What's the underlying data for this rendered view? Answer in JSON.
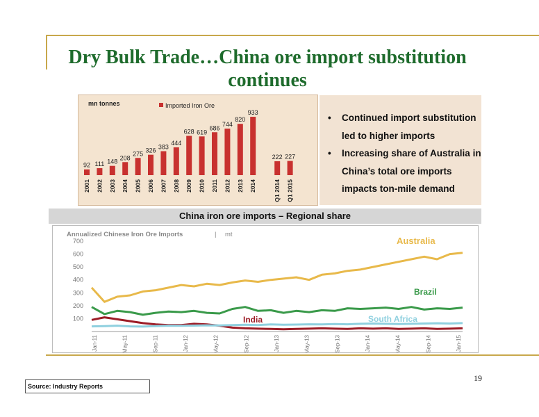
{
  "slide": {
    "title": "Dry Bulk Trade…China ore import substitution continues",
    "bullets": [
      "Continued import substitution led to higher imports",
      "Increasing share of Australia in China’s total ore imports impacts ton-mile demand"
    ],
    "subtitle": "China iron ore imports – Regional share",
    "page_number": "19",
    "source": "Source: Industry Reports"
  },
  "colors": {
    "title_green": "#1e6b2c",
    "bar_red": "#c8312f",
    "australia": "#e8b94a",
    "brazil": "#3a9a4a",
    "india": "#9c1c26",
    "south_africa": "#8fd0df",
    "gold_rule": "#c8a84b"
  },
  "chart_data": [
    {
      "type": "bar",
      "unit_label": "mn tonnes",
      "legend": "Imported Iron Ore",
      "legend_position": "top-center",
      "categories": [
        "2001",
        "2002",
        "2003",
        "2004",
        "2005",
        "2006",
        "2007",
        "2008",
        "2009",
        "2010",
        "2011",
        "2012",
        "2013",
        "2014",
        "Q1 2014",
        "Q1 2015"
      ],
      "values": [
        92,
        111,
        148,
        208,
        275,
        326,
        383,
        444,
        628,
        619,
        686,
        744,
        820,
        933,
        222,
        227
      ],
      "ylim": [
        0,
        1000
      ],
      "yticks": [
        0,
        200,
        400,
        600,
        800,
        1000
      ],
      "grid": false
    },
    {
      "type": "line",
      "title": "Annualized Chinese Iron Ore Imports",
      "unit": "mt",
      "ylim": [
        0,
        700
      ],
      "yticks": [
        100,
        200,
        300,
        400,
        500,
        600,
        700
      ],
      "x_labels": [
        "Jan-11",
        "May-11",
        "Sep-11",
        "Jan-12",
        "May-12",
        "Sep-12",
        "Jan-13",
        "May-13",
        "Sep-13",
        "Jan-14",
        "May-14",
        "Sep-14",
        "Jan-15"
      ],
      "grid": false,
      "series": [
        {
          "name": "Australia",
          "label": "Australia",
          "values": [
            340,
            230,
            270,
            280,
            310,
            320,
            340,
            360,
            350,
            370,
            360,
            380,
            395,
            385,
            400,
            410,
            420,
            400,
            440,
            450,
            470,
            480,
            500,
            520,
            540,
            560,
            580,
            560,
            600,
            610
          ]
        },
        {
          "name": "Brazil",
          "label": "Brazil",
          "values": [
            190,
            135,
            160,
            150,
            130,
            145,
            155,
            150,
            160,
            145,
            140,
            175,
            190,
            160,
            165,
            145,
            160,
            150,
            165,
            160,
            180,
            175,
            180,
            185,
            175,
            190,
            170,
            180,
            175,
            185
          ]
        },
        {
          "name": "India",
          "label": "India",
          "values": [
            90,
            110,
            95,
            80,
            65,
            55,
            50,
            50,
            60,
            55,
            45,
            30,
            25,
            22,
            20,
            18,
            20,
            22,
            25,
            22,
            20,
            25,
            22,
            25,
            20,
            22,
            25,
            20,
            22,
            25
          ]
        },
        {
          "name": "South Africa",
          "label": "South Africa",
          "values": [
            40,
            42,
            45,
            40,
            38,
            42,
            45,
            44,
            46,
            48,
            47,
            50,
            52,
            50,
            55,
            52,
            54,
            56,
            55,
            58,
            56,
            60,
            62,
            60,
            58,
            60,
            62,
            64,
            62,
            65
          ]
        }
      ]
    }
  ]
}
